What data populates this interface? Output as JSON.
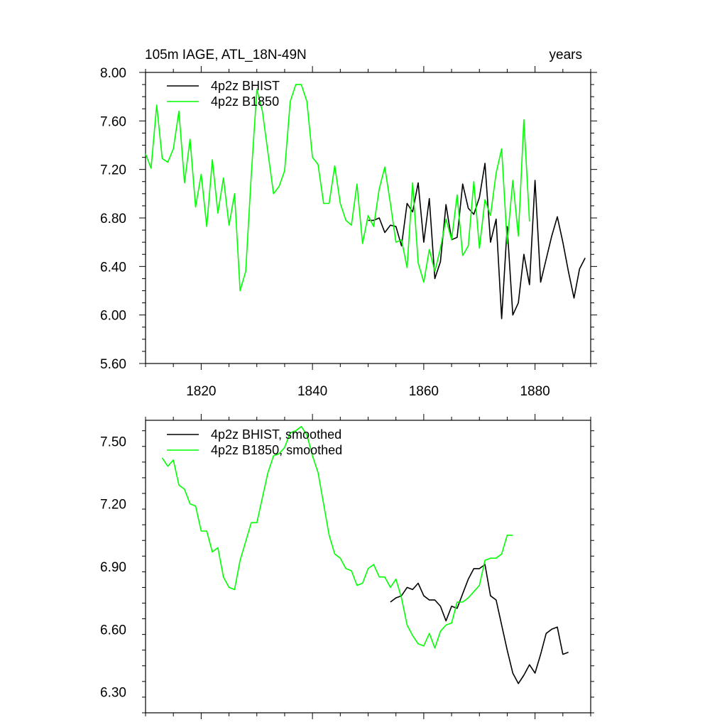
{
  "chart_data": [
    {
      "type": "line",
      "title": "105m IAGE, ATL_18N-49N",
      "units": "years",
      "xlim": [
        1810,
        1890
      ],
      "ylim": [
        5.6,
        8.0
      ],
      "xticks": [
        1820,
        1840,
        1860,
        1880
      ],
      "xtick_labels": [
        "1820",
        "1840",
        "1860",
        "1880"
      ],
      "yticks": [
        5.6,
        6.0,
        6.4,
        6.8,
        7.2,
        7.6,
        8.0
      ],
      "ytick_labels": [
        "5.60",
        "6.00",
        "6.40",
        "6.80",
        "7.20",
        "7.60",
        "8.00"
      ],
      "legend": [
        "4p2z BHIST",
        "4p2z B1850"
      ],
      "series": [
        {
          "name": "4p2z BHIST",
          "color": "#000000",
          "x": [
            1850,
            1851,
            1852,
            1853,
            1854,
            1855,
            1856,
            1857,
            1858,
            1859,
            1860,
            1861,
            1862,
            1863,
            1864,
            1865,
            1866,
            1867,
            1868,
            1869,
            1870,
            1871,
            1872,
            1873,
            1874,
            1875,
            1876,
            1877,
            1878,
            1879,
            1880,
            1881,
            1882,
            1883,
            1884,
            1885,
            1886,
            1887,
            1888,
            1889
          ],
          "y": [
            6.78,
            6.78,
            6.8,
            6.68,
            6.74,
            6.73,
            6.57,
            6.92,
            6.85,
            7.09,
            6.6,
            6.96,
            6.3,
            6.44,
            6.91,
            6.62,
            6.64,
            7.08,
            6.88,
            6.83,
            6.97,
            7.25,
            6.6,
            6.79,
            5.97,
            6.73,
            6.0,
            6.1,
            6.5,
            6.25,
            7.11,
            6.27,
            6.46,
            6.65,
            6.81,
            6.6,
            6.36,
            6.14,
            6.38,
            6.47
          ]
        },
        {
          "name": "4p2z B1850",
          "color": "#00ff00",
          "x": [
            1810,
            1811,
            1812,
            1813,
            1814,
            1815,
            1816,
            1817,
            1818,
            1819,
            1820,
            1821,
            1822,
            1823,
            1824,
            1825,
            1826,
            1827,
            1828,
            1829,
            1830,
            1831,
            1832,
            1833,
            1834,
            1835,
            1836,
            1837,
            1838,
            1839,
            1840,
            1841,
            1842,
            1843,
            1844,
            1845,
            1846,
            1847,
            1848,
            1849,
            1850,
            1851,
            1852,
            1853,
            1854,
            1855,
            1856,
            1857,
            1858,
            1859,
            1860,
            1861,
            1862,
            1863,
            1864,
            1865,
            1866,
            1867,
            1868,
            1869,
            1870,
            1871,
            1872,
            1873,
            1874,
            1875,
            1876,
            1877,
            1878,
            1879
          ],
          "y": [
            7.33,
            7.21,
            7.73,
            7.29,
            7.26,
            7.37,
            7.68,
            7.09,
            7.45,
            6.89,
            7.16,
            6.73,
            7.28,
            6.84,
            7.13,
            6.74,
            7.0,
            6.2,
            6.36,
            7.15,
            7.86,
            7.68,
            7.34,
            7.0,
            7.06,
            7.19,
            7.76,
            7.9,
            7.9,
            7.76,
            7.3,
            7.24,
            6.92,
            6.92,
            7.23,
            6.92,
            6.78,
            6.74,
            7.08,
            6.59,
            6.82,
            6.73,
            7.04,
            7.22,
            6.92,
            6.6,
            6.62,
            6.39,
            7.09,
            6.43,
            6.27,
            6.54,
            6.36,
            6.55,
            6.79,
            6.62,
            6.99,
            6.49,
            6.57,
            7.1,
            6.55,
            6.95,
            6.82,
            7.17,
            7.37,
            6.59,
            7.11,
            6.65,
            7.61,
            6.77
          ]
        }
      ]
    },
    {
      "type": "line",
      "xlim": [
        1810,
        1890
      ],
      "ylim": [
        6.2,
        7.6
      ],
      "xticks": [
        1820,
        1840,
        1860,
        1880
      ],
      "yticks": [
        6.3,
        6.6,
        6.9,
        7.2,
        7.5
      ],
      "ytick_labels": [
        "6.30",
        "6.60",
        "6.90",
        "7.20",
        "7.50"
      ],
      "legend": [
        "4p2z BHIST, smoothed",
        "4p2z B1850, smoothed"
      ],
      "series": [
        {
          "name": "4p2z BHIST, smoothed",
          "color": "#000000",
          "x": [
            1854,
            1855,
            1856,
            1857,
            1858,
            1859,
            1860,
            1861,
            1862,
            1863,
            1864,
            1865,
            1866,
            1867,
            1868,
            1869,
            1870,
            1871,
            1872,
            1873,
            1874,
            1875,
            1876,
            1877,
            1878,
            1879,
            1880,
            1881,
            1882,
            1883,
            1884,
            1885,
            1886
          ],
          "y": [
            6.73,
            6.75,
            6.76,
            6.8,
            6.79,
            6.82,
            6.76,
            6.74,
            6.74,
            6.71,
            6.64,
            6.71,
            6.7,
            6.77,
            6.84,
            6.89,
            6.89,
            6.91,
            6.76,
            6.74,
            6.62,
            6.5,
            6.39,
            6.34,
            6.38,
            6.43,
            6.39,
            6.48,
            6.58,
            6.6,
            6.61,
            6.48,
            6.49
          ]
        },
        {
          "name": "4p2z B1850, smoothed",
          "color": "#00ff00",
          "x": [
            1813,
            1814,
            1815,
            1816,
            1817,
            1818,
            1819,
            1820,
            1821,
            1822,
            1823,
            1824,
            1825,
            1826,
            1827,
            1828,
            1829,
            1830,
            1831,
            1832,
            1833,
            1834,
            1835,
            1836,
            1837,
            1838,
            1839,
            1840,
            1841,
            1842,
            1843,
            1844,
            1845,
            1846,
            1847,
            1848,
            1849,
            1850,
            1851,
            1852,
            1853,
            1854,
            1855,
            1856,
            1857,
            1858,
            1859,
            1860,
            1861,
            1862,
            1863,
            1864,
            1865,
            1866,
            1867,
            1868,
            1869,
            1870,
            1871,
            1872,
            1873,
            1874,
            1875,
            1876
          ],
          "y": [
            7.42,
            7.38,
            7.41,
            7.29,
            7.27,
            7.2,
            7.19,
            7.07,
            7.07,
            6.97,
            6.99,
            6.85,
            6.8,
            6.79,
            6.93,
            7.02,
            7.11,
            7.11,
            7.23,
            7.35,
            7.43,
            7.44,
            7.47,
            7.54,
            7.55,
            7.57,
            7.53,
            7.43,
            7.35,
            7.2,
            7.05,
            6.96,
            6.94,
            6.89,
            6.88,
            6.81,
            6.82,
            6.89,
            6.91,
            6.85,
            6.85,
            6.8,
            6.84,
            6.75,
            6.62,
            6.57,
            6.53,
            6.52,
            6.58,
            6.51,
            6.59,
            6.62,
            6.63,
            6.73,
            6.73,
            6.75,
            6.78,
            6.81,
            6.93,
            6.94,
            6.94,
            6.96,
            7.05,
            7.05
          ]
        }
      ]
    }
  ]
}
